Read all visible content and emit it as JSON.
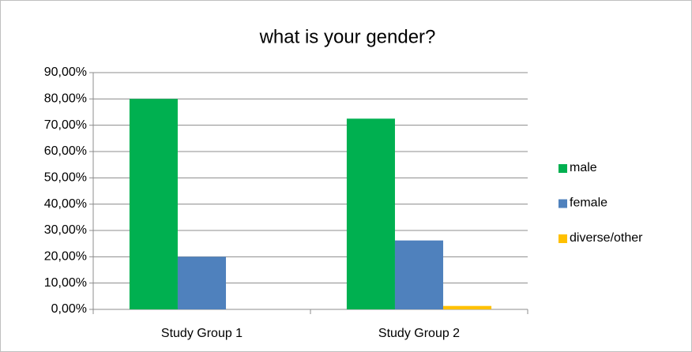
{
  "chart_data": {
    "type": "bar",
    "title": "what is your gender?",
    "categories": [
      "Study Group 1",
      "Study Group 2"
    ],
    "series": [
      {
        "name": "male",
        "color": "#00b050",
        "values": [
          80,
          72.5
        ]
      },
      {
        "name": "female",
        "color": "#4f81bd",
        "values": [
          20,
          26.2
        ]
      },
      {
        "name": "diverse/other",
        "color": "#ffc000",
        "values": [
          0,
          1.3
        ]
      }
    ],
    "ylim": [
      0,
      90
    ],
    "yticks": [
      {
        "value": 0,
        "label": "0,00%"
      },
      {
        "value": 10,
        "label": "10,00%"
      },
      {
        "value": 20,
        "label": "20,00%"
      },
      {
        "value": 30,
        "label": "30,00%"
      },
      {
        "value": 40,
        "label": "40,00%"
      },
      {
        "value": 50,
        "label": "50,00%"
      },
      {
        "value": 60,
        "label": "60,00%"
      },
      {
        "value": 70,
        "label": "70,00%"
      },
      {
        "value": 80,
        "label": "80,00%"
      },
      {
        "value": 90,
        "label": "90,00%"
      }
    ],
    "grid": true,
    "legend": "right"
  }
}
